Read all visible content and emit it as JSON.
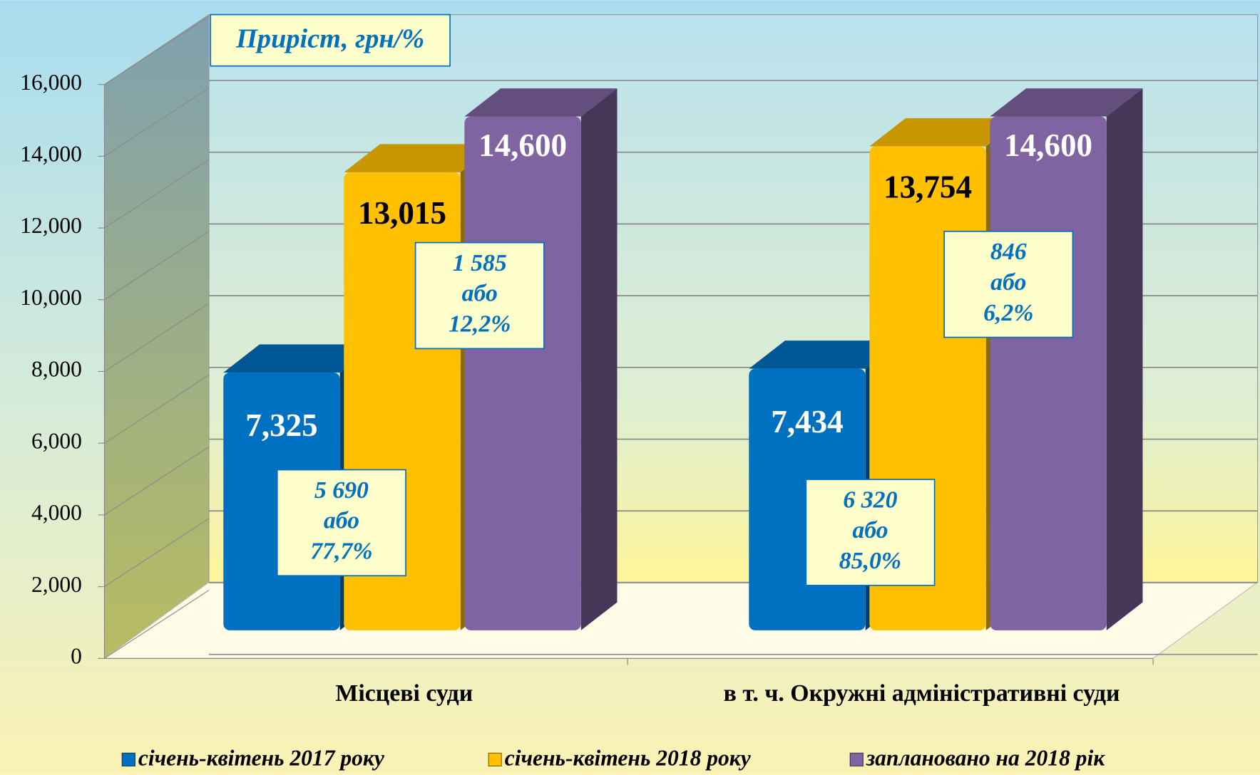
{
  "chart_data": {
    "type": "bar3d",
    "title": "Приріст, грн/%",
    "categories": [
      "Місцеві суди",
      "в т. ч. Окружні адміністративні суди"
    ],
    "series": [
      {
        "name": "січень-квітень 2017 року",
        "color": "#0070c0",
        "values": [
          7325,
          7434
        ],
        "value_labels": [
          "7,325",
          "7,434"
        ]
      },
      {
        "name": "січень-квітень 2018 року",
        "color": "#ffc000",
        "values": [
          13015,
          13754
        ],
        "value_labels": [
          "13,015",
          "13,754"
        ]
      },
      {
        "name": "заплановано на 2018 рік",
        "color": "#8064a2",
        "values": [
          14600,
          14600
        ],
        "value_labels": [
          "14,600",
          "14,600"
        ]
      }
    ],
    "ylim": [
      0,
      16000
    ],
    "yticks": [
      0,
      {
        "value": 2000,
        "label": "2,000"
      },
      {
        "value": 4000,
        "label": "4,000"
      },
      {
        "value": 6000,
        "label": "6,000"
      },
      {
        "value": 8000,
        "label": "8,000"
      },
      {
        "value": 10000,
        "label": "10,000"
      },
      {
        "value": 12000,
        "label": "12,000"
      },
      {
        "value": 14000,
        "label": "14,000"
      },
      {
        "value": 16000,
        "label": "16,000"
      }
    ],
    "grid": true,
    "legend": "bottom",
    "annotations": [
      [
        "5 690",
        "або",
        "77,7%"
      ],
      [
        "1 585",
        "або",
        "12,2%"
      ],
      [
        "6 320",
        "або",
        "85,0%"
      ],
      [
        "846",
        "або",
        "6,2%"
      ]
    ]
  }
}
